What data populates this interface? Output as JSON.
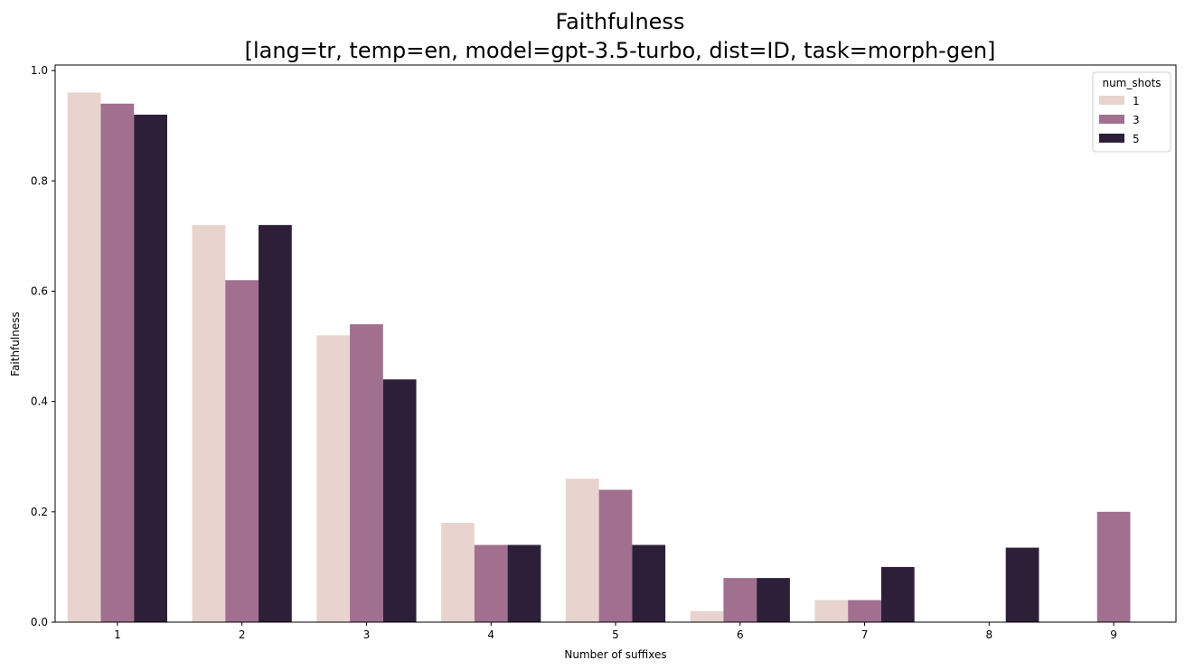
{
  "chart_data": {
    "type": "bar",
    "title_lines": [
      "Faithfulness",
      "[lang=tr, temp=en, model=gpt-3.5-turbo, dist=ID, task=morph-gen]"
    ],
    "xlabel": "Number of suffixes",
    "ylabel": "Faithfulness",
    "categories": [
      "1",
      "2",
      "3",
      "4",
      "5",
      "6",
      "7",
      "8",
      "9"
    ],
    "ylim": [
      0,
      1.01
    ],
    "yticks": [
      0.0,
      0.2,
      0.4,
      0.6,
      0.8,
      1.0
    ],
    "ytick_labels": [
      "0.0",
      "0.2",
      "0.4",
      "0.6",
      "0.8",
      "1.0"
    ],
    "grid": false,
    "legend": {
      "title": "num_shots",
      "placement": "top-right"
    },
    "series": [
      {
        "name": "1",
        "color": "#e8d3cf",
        "values": [
          0.96,
          0.72,
          0.52,
          0.18,
          0.26,
          0.02,
          0.04,
          null,
          null
        ]
      },
      {
        "name": "3",
        "color": "#a1708e",
        "values": [
          0.94,
          0.62,
          0.54,
          0.14,
          0.24,
          0.08,
          0.04,
          null,
          0.2
        ]
      },
      {
        "name": "5",
        "color": "#2e1f39",
        "values": [
          0.92,
          0.72,
          0.44,
          0.14,
          0.14,
          0.08,
          0.1,
          0.135,
          null
        ]
      }
    ]
  }
}
